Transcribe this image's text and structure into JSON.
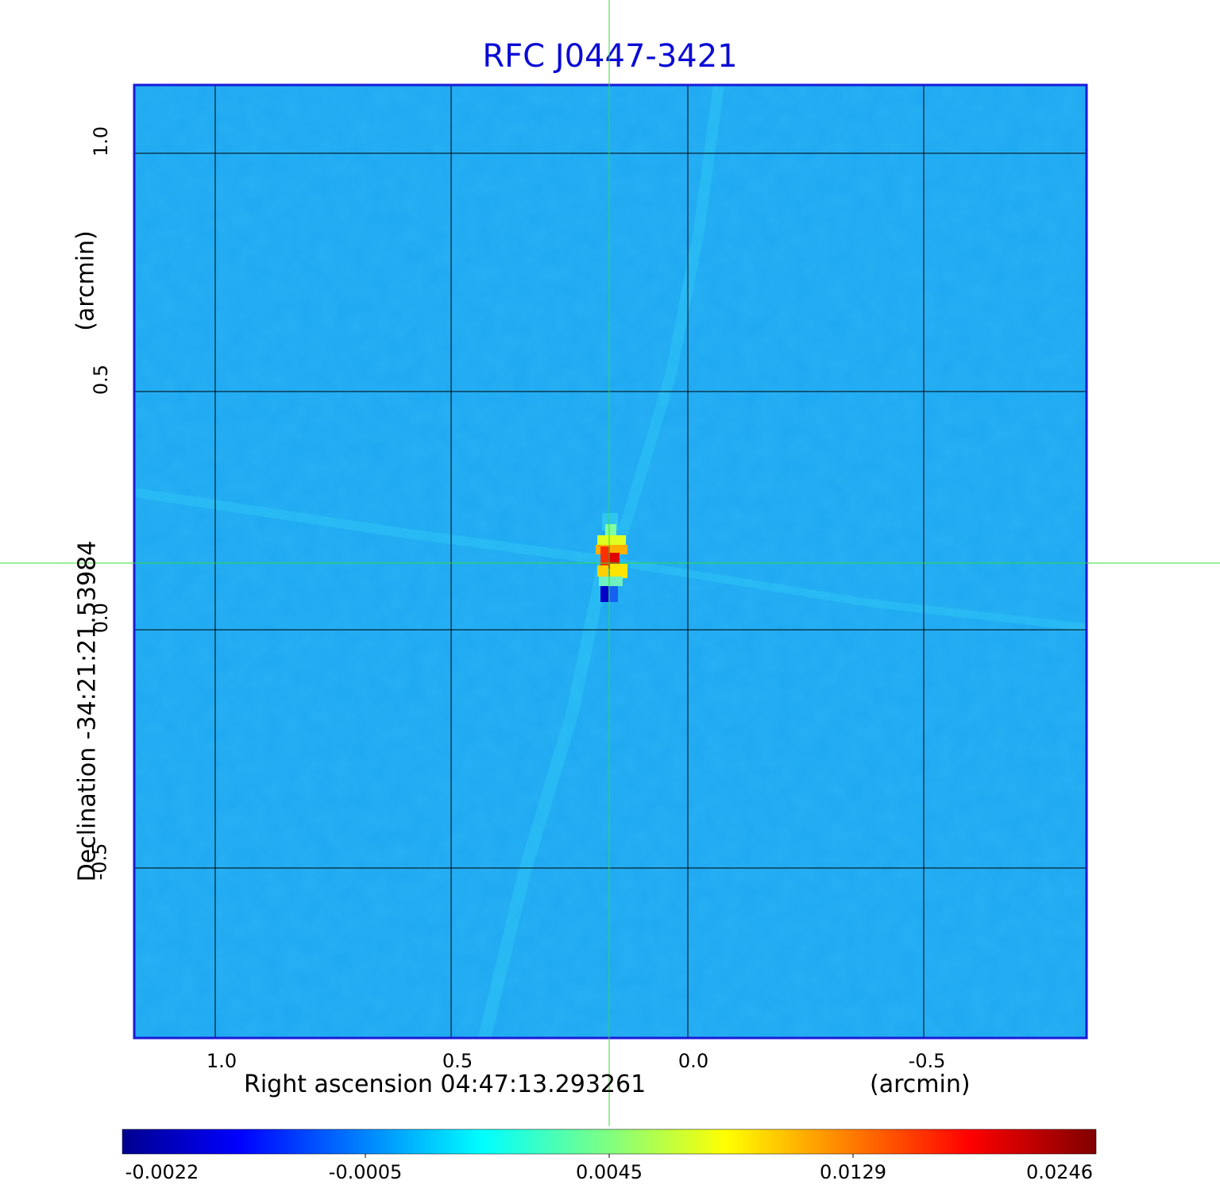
{
  "title": "RFC J0447-3421",
  "x_axis": {
    "label": "Right ascension  04:47:13.293261",
    "unit": "(arcmin)",
    "ticks": [
      "1.0",
      "0.5",
      "0.0",
      "-0.5"
    ]
  },
  "y_axis": {
    "label": "Declination  -34:21:21.53984",
    "unit": "(arcmin)",
    "ticks": [
      "1.0",
      "0.5",
      "0.0",
      "-0.5"
    ]
  },
  "colorbar": {
    "ticks": [
      "-0.0022",
      "-0.0005",
      "0.0045",
      "0.0129",
      "0.0246"
    ],
    "colormap": "jet"
  },
  "colors": {
    "title": "#0b0bd6",
    "frame": "#1a1ad8",
    "crosshair": "#33dd33",
    "background_map": "#1aa3f0"
  },
  "source": {
    "peak_ra_arcmin": 0.17,
    "peak_dec_arcmin": 0.14
  }
}
